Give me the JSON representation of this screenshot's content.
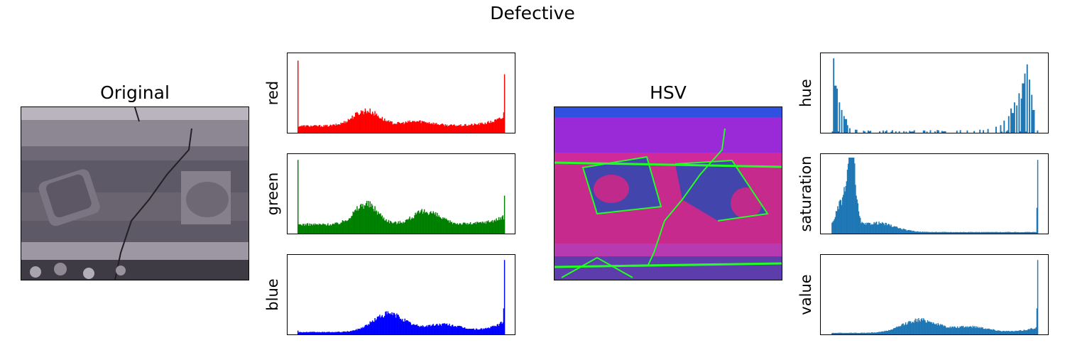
{
  "figure": {
    "title": "Defective"
  },
  "chart_data": [
    {
      "type": "image",
      "title": "Original"
    },
    {
      "type": "histogram",
      "ylabel": "red",
      "color": "#ff0000",
      "bins": 256,
      "shape": {
        "base": 0.09,
        "spike_start": 0.95,
        "spike_end": 0.77,
        "humps": [
          {
            "center": 0.33,
            "width": 0.09,
            "height": 0.2
          },
          {
            "center": 0.58,
            "width": 0.1,
            "height": 0.06
          }
        ],
        "tail_rise": 0.12
      }
    },
    {
      "type": "histogram",
      "ylabel": "green",
      "color": "#008000",
      "bins": 256,
      "shape": {
        "base": 0.12,
        "spike_start": 0.97,
        "spike_end": 0.5,
        "humps": [
          {
            "center": 0.33,
            "width": 0.08,
            "height": 0.27
          },
          {
            "center": 0.62,
            "width": 0.09,
            "height": 0.17
          }
        ],
        "tail_rise": 0.1
      }
    },
    {
      "type": "histogram",
      "ylabel": "blue",
      "color": "#0000ff",
      "bins": 256,
      "shape": {
        "base": 0.03,
        "spike_start": 0.05,
        "spike_end": 0.98,
        "humps": [
          {
            "center": 0.44,
            "width": 0.11,
            "height": 0.24
          },
          {
            "center": 0.7,
            "width": 0.12,
            "height": 0.1
          }
        ],
        "tail_rise": 0.14
      }
    },
    {
      "type": "image",
      "title": "HSV"
    },
    {
      "type": "histogram",
      "ylabel": "hue",
      "color": "#1f77b4",
      "bins": 180,
      "shape": {
        "sparse": true,
        "peaks": [
          [
            0.01,
            0.98
          ],
          [
            0.02,
            0.62
          ],
          [
            0.03,
            0.58
          ],
          [
            0.04,
            0.4
          ],
          [
            0.05,
            0.3
          ],
          [
            0.06,
            0.22
          ],
          [
            0.07,
            0.18
          ],
          [
            0.08,
            0.1
          ],
          [
            0.09,
            0.06
          ],
          [
            0.12,
            0.04
          ],
          [
            0.18,
            0.03
          ],
          [
            0.25,
            0.03
          ],
          [
            0.33,
            0.02
          ],
          [
            0.45,
            0.03
          ],
          [
            0.55,
            0.02
          ],
          [
            0.66,
            0.03
          ],
          [
            0.72,
            0.04
          ],
          [
            0.76,
            0.05
          ],
          [
            0.8,
            0.08
          ],
          [
            0.82,
            0.1
          ],
          [
            0.84,
            0.16
          ],
          [
            0.86,
            0.22
          ],
          [
            0.87,
            0.32
          ],
          [
            0.88,
            0.26
          ],
          [
            0.89,
            0.4
          ],
          [
            0.9,
            0.36
          ],
          [
            0.91,
            0.52
          ],
          [
            0.92,
            0.45
          ],
          [
            0.93,
            0.65
          ],
          [
            0.94,
            0.78
          ],
          [
            0.95,
            0.9
          ],
          [
            0.96,
            0.7
          ],
          [
            0.97,
            0.5
          ],
          [
            0.98,
            0.3
          ]
        ]
      }
    },
    {
      "type": "histogram",
      "ylabel": "saturation",
      "color": "#1f77b4",
      "bins": 256,
      "shape": {
        "base": 0.02,
        "spike_start": 0.0,
        "spike_end": 0.97,
        "humps": [
          {
            "center": 0.1,
            "width": 0.025,
            "height": 0.85
          },
          {
            "center": 0.06,
            "width": 0.05,
            "height": 0.4
          },
          {
            "center": 0.22,
            "width": 0.12,
            "height": 0.12
          }
        ],
        "tail_rise": 0.0
      }
    },
    {
      "type": "histogram",
      "ylabel": "value",
      "color": "#1f77b4",
      "bins": 256,
      "shape": {
        "base": 0.02,
        "spike_start": 0.0,
        "spike_end": 0.98,
        "humps": [
          {
            "center": 0.43,
            "width": 0.12,
            "height": 0.17
          },
          {
            "center": 0.68,
            "width": 0.12,
            "height": 0.08
          }
        ],
        "tail_rise": 0.08
      }
    }
  ]
}
